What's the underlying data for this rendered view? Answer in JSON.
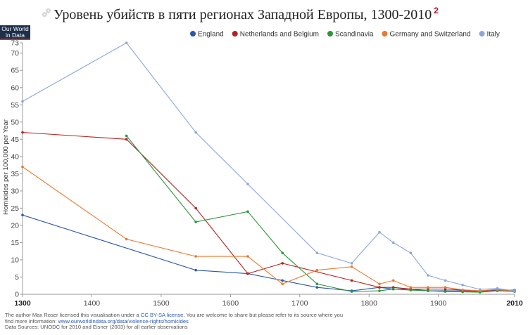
{
  "header": {
    "title": "Уровень убийств в пяти регионах Западной Европы, 1300-2010",
    "footnote_marker": "2"
  },
  "logo": {
    "line1": "Our World",
    "line2": "in Data"
  },
  "footer": {
    "line1_pre": "The author Max Roser licensed this visualisation under a ",
    "line1_link": "CC BY-SA license",
    "line1_post": ". You are welcome to share but please refer to its source where you",
    "line2_pre": "find more information: ",
    "line2_link": "www.ourworldindata.org/data/violence-rights/homicides",
    "line3": "Data Sources: UNODC for 2010 and Eisner (2003) for all earlier observations"
  },
  "chart_data": {
    "type": "line",
    "title": "Уровень убийств в пяти регионах Западной Европы, 1300-2010",
    "xlabel": "",
    "ylabel": "Homicides per 100,000 per Year",
    "xlim": [
      1300,
      2010
    ],
    "ylim": [
      0,
      73
    ],
    "xticks": [
      1300,
      1400,
      1500,
      1600,
      1700,
      1800,
      1900,
      2010
    ],
    "yticks": [
      0,
      5,
      10,
      15,
      20,
      25,
      30,
      35,
      40,
      45,
      50,
      55,
      60,
      65,
      70,
      73
    ],
    "grid": false,
    "legend_position": "top",
    "series": [
      {
        "name": "England",
        "color": "#2b57a8",
        "points": [
          [
            1300,
            23
          ],
          [
            1550,
            7
          ],
          [
            1625,
            6
          ],
          [
            1675,
            4
          ],
          [
            1725,
            2
          ],
          [
            1775,
            1
          ],
          [
            1815,
            2
          ],
          [
            1835,
            1.5
          ],
          [
            1860,
            1.5
          ],
          [
            1885,
            1
          ],
          [
            1910,
            1
          ],
          [
            1935,
            1
          ],
          [
            1960,
            0.7
          ],
          [
            1985,
            1.2
          ],
          [
            2010,
            1.2
          ]
        ]
      },
      {
        "name": "Netherlands and Belgium",
        "color": "#b5221e",
        "points": [
          [
            1300,
            47
          ],
          [
            1450,
            45
          ],
          [
            1550,
            25
          ],
          [
            1625,
            6
          ],
          [
            1675,
            9
          ],
          [
            1775,
            4
          ],
          [
            1815,
            2
          ],
          [
            1835,
            2
          ],
          [
            1860,
            1.5
          ],
          [
            1885,
            1.5
          ],
          [
            1910,
            1.5
          ],
          [
            1935,
            1.2
          ],
          [
            1960,
            1
          ],
          [
            1985,
            1.3
          ],
          [
            2010,
            1
          ]
        ]
      },
      {
        "name": "Scandinavia",
        "color": "#2e9437",
        "points": [
          [
            1450,
            46
          ],
          [
            1550,
            21
          ],
          [
            1625,
            24
          ],
          [
            1675,
            12
          ],
          [
            1725,
            3
          ],
          [
            1775,
            0.8
          ],
          [
            1815,
            1
          ],
          [
            1835,
            1.5
          ],
          [
            1860,
            1.2
          ],
          [
            1885,
            1
          ],
          [
            1910,
            0.8
          ],
          [
            1935,
            0.7
          ],
          [
            1960,
            0.6
          ],
          [
            1985,
            1
          ],
          [
            2010,
            0.8
          ]
        ]
      },
      {
        "name": "Germany and Switzerland",
        "color": "#ea7a2e",
        "points": [
          [
            1300,
            37
          ],
          [
            1450,
            16
          ],
          [
            1550,
            11
          ],
          [
            1625,
            11
          ],
          [
            1675,
            3
          ],
          [
            1725,
            7
          ],
          [
            1775,
            8
          ],
          [
            1815,
            3
          ],
          [
            1835,
            4
          ],
          [
            1860,
            2
          ],
          [
            1885,
            2
          ],
          [
            1910,
            2
          ],
          [
            1935,
            1.3
          ],
          [
            1960,
            1
          ],
          [
            1985,
            1.4
          ],
          [
            2010,
            1
          ]
        ]
      },
      {
        "name": "Italy",
        "color": "#8ea5dc",
        "points": [
          [
            1300,
            56
          ],
          [
            1450,
            73
          ],
          [
            1550,
            47
          ],
          [
            1625,
            32
          ],
          [
            1725,
            12
          ],
          [
            1775,
            9
          ],
          [
            1815,
            18
          ],
          [
            1835,
            15
          ],
          [
            1860,
            12
          ],
          [
            1885,
            5.5
          ],
          [
            1910,
            4
          ],
          [
            1935,
            2.7
          ],
          [
            1960,
            1.4
          ],
          [
            1985,
            1.7
          ],
          [
            2010,
            1
          ]
        ]
      }
    ]
  }
}
